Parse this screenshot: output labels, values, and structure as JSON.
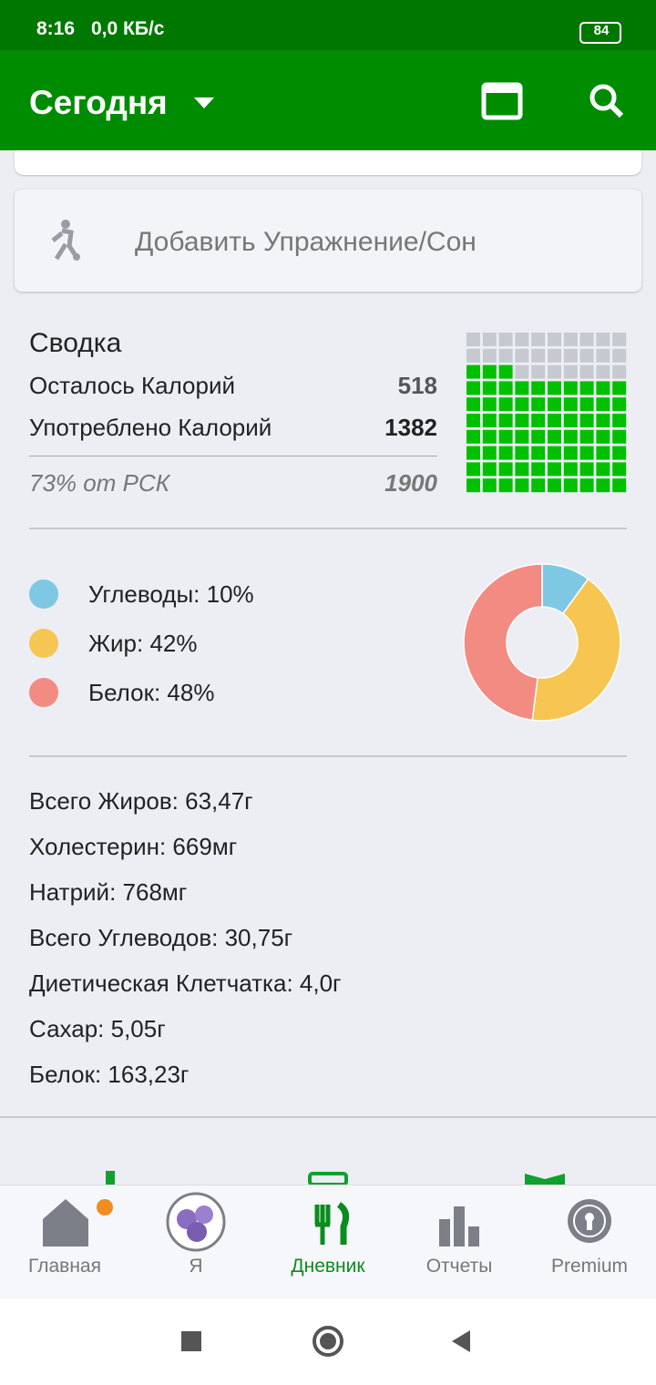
{
  "status_bar": {
    "time": "8:16",
    "speed": "0,0 КБ/с",
    "battery": "84"
  },
  "app_bar": {
    "title": "Сегодня"
  },
  "exercise_card": {
    "label": "Добавить Упражнение/Сон"
  },
  "summary": {
    "title": "Сводка",
    "remaining_label": "Осталось Калорий",
    "remaining": 518,
    "consumed_label": "Употреблено Калорий",
    "consumed": 1382,
    "percent": {
      "value": 73,
      "label": "73% от РСК"
    },
    "goal": 1900,
    "waffle_color": "#00c000",
    "waffle_empty_color": "#c7c9d1"
  },
  "macros": [
    {
      "label": "Углеводы: 10%",
      "value": 10,
      "color": "#7ec8e3"
    },
    {
      "label": "Жир: 42%",
      "value": 42,
      "color": "#f7c552"
    },
    {
      "label": "Белок: 48%",
      "value": 48,
      "color": "#f28b82"
    }
  ],
  "nutrients": [
    "Всего Жиров: 63,47г",
    "Холестерин: 669мг",
    "Натрий: 768мг",
    "Всего Углеводов: 30,75г",
    "Диетическая Клетчатка: 4,0г",
    "Сахар: 5,05г",
    "Белок: 163,23г"
  ],
  "bottom_nav": [
    "Главная",
    "Я",
    "Дневник",
    "Отчеты",
    "Premium"
  ]
}
